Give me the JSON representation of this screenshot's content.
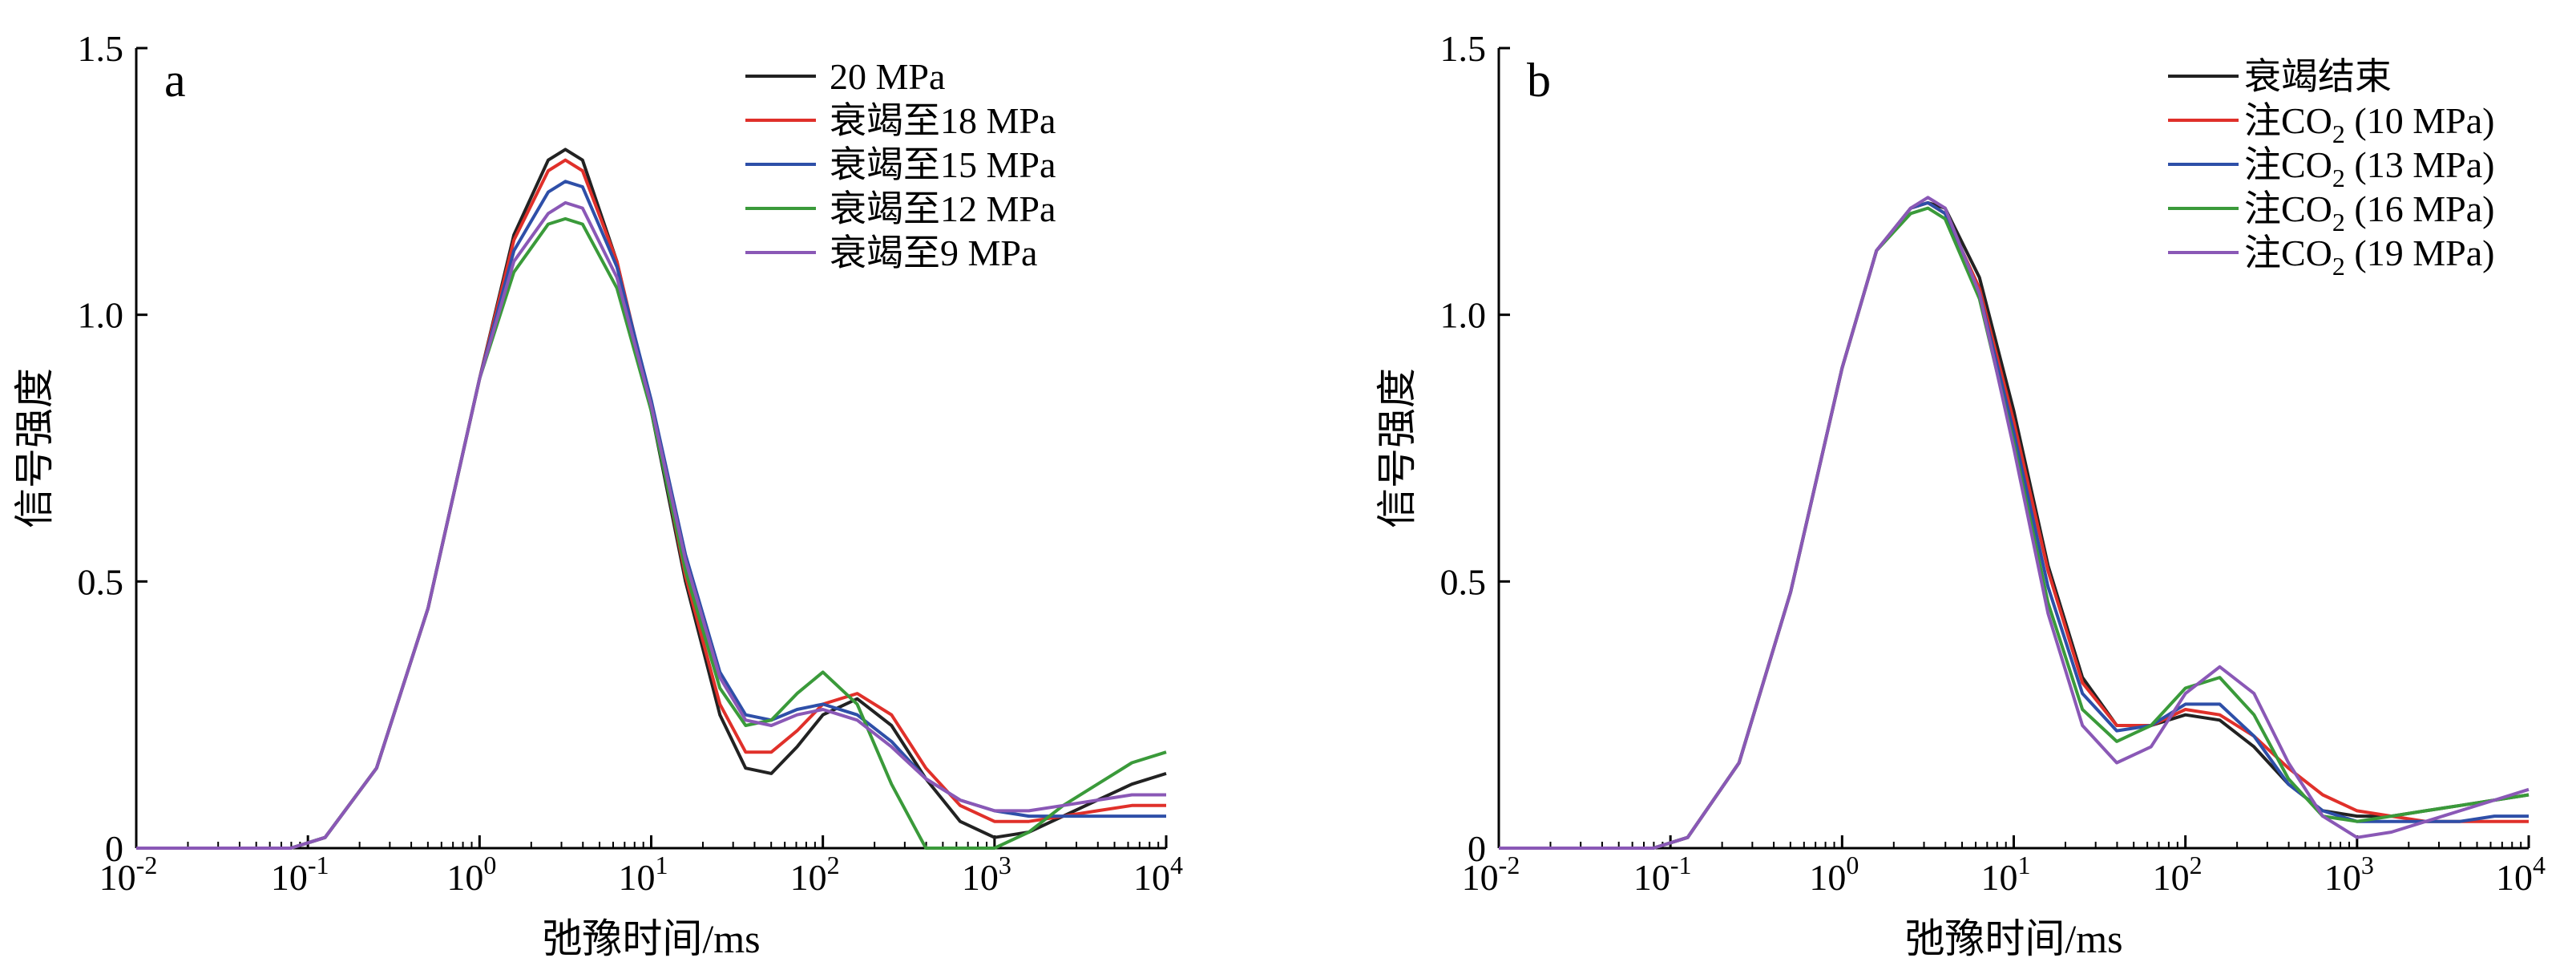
{
  "chart_data": [
    {
      "type": "line",
      "panel_label": "a",
      "xlabel": "弛豫时间/ms",
      "ylabel": "信号强度",
      "xscale": "log",
      "xlim_log10": [
        -2,
        4
      ],
      "ylim": [
        0,
        1.5
      ],
      "x_tick_exponents": [
        "-2",
        "-1",
        "0",
        "1",
        "2",
        "3",
        "4"
      ],
      "x_tick_base": "10",
      "y_ticks": [
        "0",
        "0.5",
        "1.0",
        "1.5"
      ],
      "legend_position": "top-right",
      "series": [
        {
          "name": "20 MPa",
          "color": "#222222",
          "x_log": [
            -2.0,
            -1.1,
            -0.9,
            -0.6,
            -0.3,
            0.0,
            0.2,
            0.4,
            0.5,
            0.6,
            0.8,
            1.0,
            1.2,
            1.4,
            1.55,
            1.7,
            1.85,
            2.0,
            2.2,
            2.4,
            2.6,
            2.8,
            3.0,
            3.2,
            3.4,
            3.6,
            3.8,
            4.0
          ],
          "values": [
            0,
            0,
            0.02,
            0.15,
            0.45,
            0.88,
            1.15,
            1.29,
            1.31,
            1.29,
            1.1,
            0.82,
            0.5,
            0.25,
            0.15,
            0.14,
            0.19,
            0.25,
            0.28,
            0.23,
            0.13,
            0.05,
            0.02,
            0.03,
            0.06,
            0.09,
            0.12,
            0.14
          ]
        },
        {
          "name": "衰竭至18 MPa",
          "color": "#e0302a",
          "x_log": [
            -2.0,
            -1.1,
            -0.9,
            -0.6,
            -0.3,
            0.0,
            0.2,
            0.4,
            0.5,
            0.6,
            0.8,
            1.0,
            1.2,
            1.4,
            1.55,
            1.7,
            1.85,
            2.0,
            2.2,
            2.4,
            2.6,
            2.8,
            3.0,
            3.2,
            3.4,
            3.6,
            3.8,
            4.0
          ],
          "values": [
            0,
            0,
            0.02,
            0.15,
            0.45,
            0.88,
            1.14,
            1.27,
            1.29,
            1.27,
            1.1,
            0.83,
            0.51,
            0.27,
            0.18,
            0.18,
            0.22,
            0.27,
            0.29,
            0.25,
            0.15,
            0.08,
            0.05,
            0.05,
            0.06,
            0.07,
            0.08,
            0.08
          ]
        },
        {
          "name": "衰竭至15 MPa",
          "color": "#2e4fa8",
          "x_log": [
            -2.0,
            -1.1,
            -0.9,
            -0.6,
            -0.3,
            0.0,
            0.2,
            0.4,
            0.5,
            0.6,
            0.8,
            1.0,
            1.2,
            1.4,
            1.55,
            1.7,
            1.85,
            2.0,
            2.2,
            2.4,
            2.6,
            2.8,
            3.0,
            3.2,
            3.4,
            3.6,
            3.8,
            4.0
          ],
          "values": [
            0,
            0,
            0.02,
            0.15,
            0.45,
            0.88,
            1.12,
            1.23,
            1.25,
            1.24,
            1.09,
            0.84,
            0.55,
            0.33,
            0.25,
            0.24,
            0.26,
            0.27,
            0.25,
            0.2,
            0.13,
            0.09,
            0.07,
            0.06,
            0.06,
            0.06,
            0.06,
            0.06
          ]
        },
        {
          "name": "衰竭至12 MPa",
          "color": "#3a9a3a",
          "x_log": [
            -2.0,
            -1.1,
            -0.9,
            -0.6,
            -0.3,
            0.0,
            0.2,
            0.4,
            0.5,
            0.6,
            0.8,
            1.0,
            1.2,
            1.4,
            1.55,
            1.7,
            1.85,
            2.0,
            2.2,
            2.4,
            2.6,
            2.8,
            3.0,
            3.2,
            3.4,
            3.6,
            3.8,
            4.0
          ],
          "values": [
            0,
            0,
            0.02,
            0.15,
            0.45,
            0.88,
            1.08,
            1.17,
            1.18,
            1.17,
            1.05,
            0.82,
            0.52,
            0.3,
            0.23,
            0.24,
            0.29,
            0.33,
            0.27,
            0.12,
            0.0,
            0.0,
            0.0,
            0.03,
            0.08,
            0.12,
            0.16,
            0.18
          ]
        },
        {
          "name": "衰竭至9 MPa",
          "color": "#8a58b6",
          "x_log": [
            -2.0,
            -1.1,
            -0.9,
            -0.6,
            -0.3,
            0.0,
            0.2,
            0.4,
            0.5,
            0.6,
            0.8,
            1.0,
            1.2,
            1.4,
            1.55,
            1.7,
            1.85,
            2.0,
            2.2,
            2.4,
            2.6,
            2.8,
            3.0,
            3.2,
            3.4,
            3.6,
            3.8,
            4.0
          ],
          "values": [
            0,
            0,
            0.02,
            0.15,
            0.45,
            0.88,
            1.1,
            1.19,
            1.21,
            1.2,
            1.07,
            0.83,
            0.54,
            0.32,
            0.24,
            0.23,
            0.25,
            0.26,
            0.24,
            0.19,
            0.13,
            0.09,
            0.07,
            0.07,
            0.08,
            0.09,
            0.1,
            0.1
          ]
        }
      ]
    },
    {
      "type": "line",
      "panel_label": "b",
      "xlabel": "弛豫时间/ms",
      "ylabel": "信号强度",
      "xscale": "log",
      "xlim_log10": [
        -2,
        4
      ],
      "ylim": [
        0,
        1.5
      ],
      "x_tick_exponents": [
        "-2",
        "-1",
        "0",
        "1",
        "2",
        "3",
        "4"
      ],
      "x_tick_base": "10",
      "y_ticks": [
        "0",
        "0.5",
        "1.0",
        "1.5"
      ],
      "legend_position": "top-right",
      "series": [
        {
          "name": "衰竭结束",
          "name_parts": [
            "衰竭结束"
          ],
          "color": "#222222",
          "x_log": [
            -2.0,
            -1.1,
            -0.9,
            -0.6,
            -0.3,
            0.0,
            0.2,
            0.4,
            0.5,
            0.6,
            0.8,
            1.0,
            1.2,
            1.4,
            1.6,
            1.8,
            2.0,
            2.2,
            2.4,
            2.6,
            2.8,
            3.0,
            3.2,
            3.4,
            3.6,
            3.8,
            4.0
          ],
          "values": [
            0,
            0,
            0.02,
            0.16,
            0.48,
            0.9,
            1.12,
            1.2,
            1.21,
            1.2,
            1.07,
            0.82,
            0.53,
            0.32,
            0.23,
            0.23,
            0.25,
            0.24,
            0.19,
            0.12,
            0.07,
            0.06,
            0.06,
            0.07,
            0.08,
            0.09,
            0.1
          ]
        },
        {
          "name": "注CO2 (10 MPa)",
          "name_parts": [
            "注CO",
            "2",
            " (10 MPa)"
          ],
          "color": "#e0302a",
          "x_log": [
            -2.0,
            -1.1,
            -0.9,
            -0.6,
            -0.3,
            0.0,
            0.2,
            0.4,
            0.5,
            0.6,
            0.8,
            1.0,
            1.2,
            1.4,
            1.6,
            1.8,
            2.0,
            2.2,
            2.4,
            2.6,
            2.8,
            3.0,
            3.2,
            3.4,
            3.6,
            3.8,
            4.0
          ],
          "values": [
            0,
            0,
            0.02,
            0.16,
            0.48,
            0.9,
            1.12,
            1.2,
            1.21,
            1.19,
            1.05,
            0.8,
            0.52,
            0.31,
            0.23,
            0.23,
            0.26,
            0.25,
            0.21,
            0.15,
            0.1,
            0.07,
            0.06,
            0.05,
            0.05,
            0.05,
            0.05
          ]
        },
        {
          "name": "注CO2 (13 MPa)",
          "name_parts": [
            "注CO",
            "2",
            " (13 MPa)"
          ],
          "color": "#2e4fa8",
          "x_log": [
            -2.0,
            -1.1,
            -0.9,
            -0.6,
            -0.3,
            0.0,
            0.2,
            0.4,
            0.5,
            0.6,
            0.8,
            1.0,
            1.2,
            1.4,
            1.6,
            1.8,
            2.0,
            2.2,
            2.4,
            2.6,
            2.8,
            3.0,
            3.2,
            3.4,
            3.6,
            3.8,
            4.0
          ],
          "values": [
            0,
            0,
            0.02,
            0.16,
            0.48,
            0.9,
            1.12,
            1.2,
            1.21,
            1.19,
            1.04,
            0.78,
            0.49,
            0.29,
            0.22,
            0.23,
            0.27,
            0.27,
            0.21,
            0.12,
            0.07,
            0.05,
            0.05,
            0.05,
            0.05,
            0.06,
            0.06
          ]
        },
        {
          "name": "注CO2 (16 MPa)",
          "name_parts": [
            "注CO",
            "2",
            " (16 MPa)"
          ],
          "color": "#3a9a3a",
          "x_log": [
            -2.0,
            -1.1,
            -0.9,
            -0.6,
            -0.3,
            0.0,
            0.2,
            0.4,
            0.5,
            0.6,
            0.8,
            1.0,
            1.2,
            1.4,
            1.6,
            1.8,
            2.0,
            2.2,
            2.4,
            2.6,
            2.8,
            3.0,
            3.2,
            3.4,
            3.6,
            3.8,
            4.0
          ],
          "values": [
            0,
            0,
            0.02,
            0.16,
            0.48,
            0.9,
            1.12,
            1.19,
            1.2,
            1.18,
            1.03,
            0.76,
            0.46,
            0.26,
            0.2,
            0.23,
            0.3,
            0.32,
            0.25,
            0.13,
            0.06,
            0.05,
            0.06,
            0.07,
            0.08,
            0.09,
            0.1
          ]
        },
        {
          "name": "注CO2 (19 MPa)",
          "name_parts": [
            "注CO",
            "2",
            " (19 MPa)"
          ],
          "color": "#8a58b6",
          "x_log": [
            -2.0,
            -1.1,
            -0.9,
            -0.6,
            -0.3,
            0.0,
            0.2,
            0.4,
            0.5,
            0.6,
            0.8,
            1.0,
            1.2,
            1.4,
            1.6,
            1.8,
            2.0,
            2.2,
            2.4,
            2.6,
            2.8,
            3.0,
            3.2,
            3.4,
            3.6,
            3.8,
            4.0
          ],
          "values": [
            0,
            0,
            0.02,
            0.16,
            0.48,
            0.9,
            1.12,
            1.2,
            1.22,
            1.2,
            1.04,
            0.75,
            0.44,
            0.23,
            0.16,
            0.19,
            0.29,
            0.34,
            0.29,
            0.16,
            0.06,
            0.02,
            0.03,
            0.05,
            0.07,
            0.09,
            0.11
          ]
        }
      ]
    }
  ]
}
